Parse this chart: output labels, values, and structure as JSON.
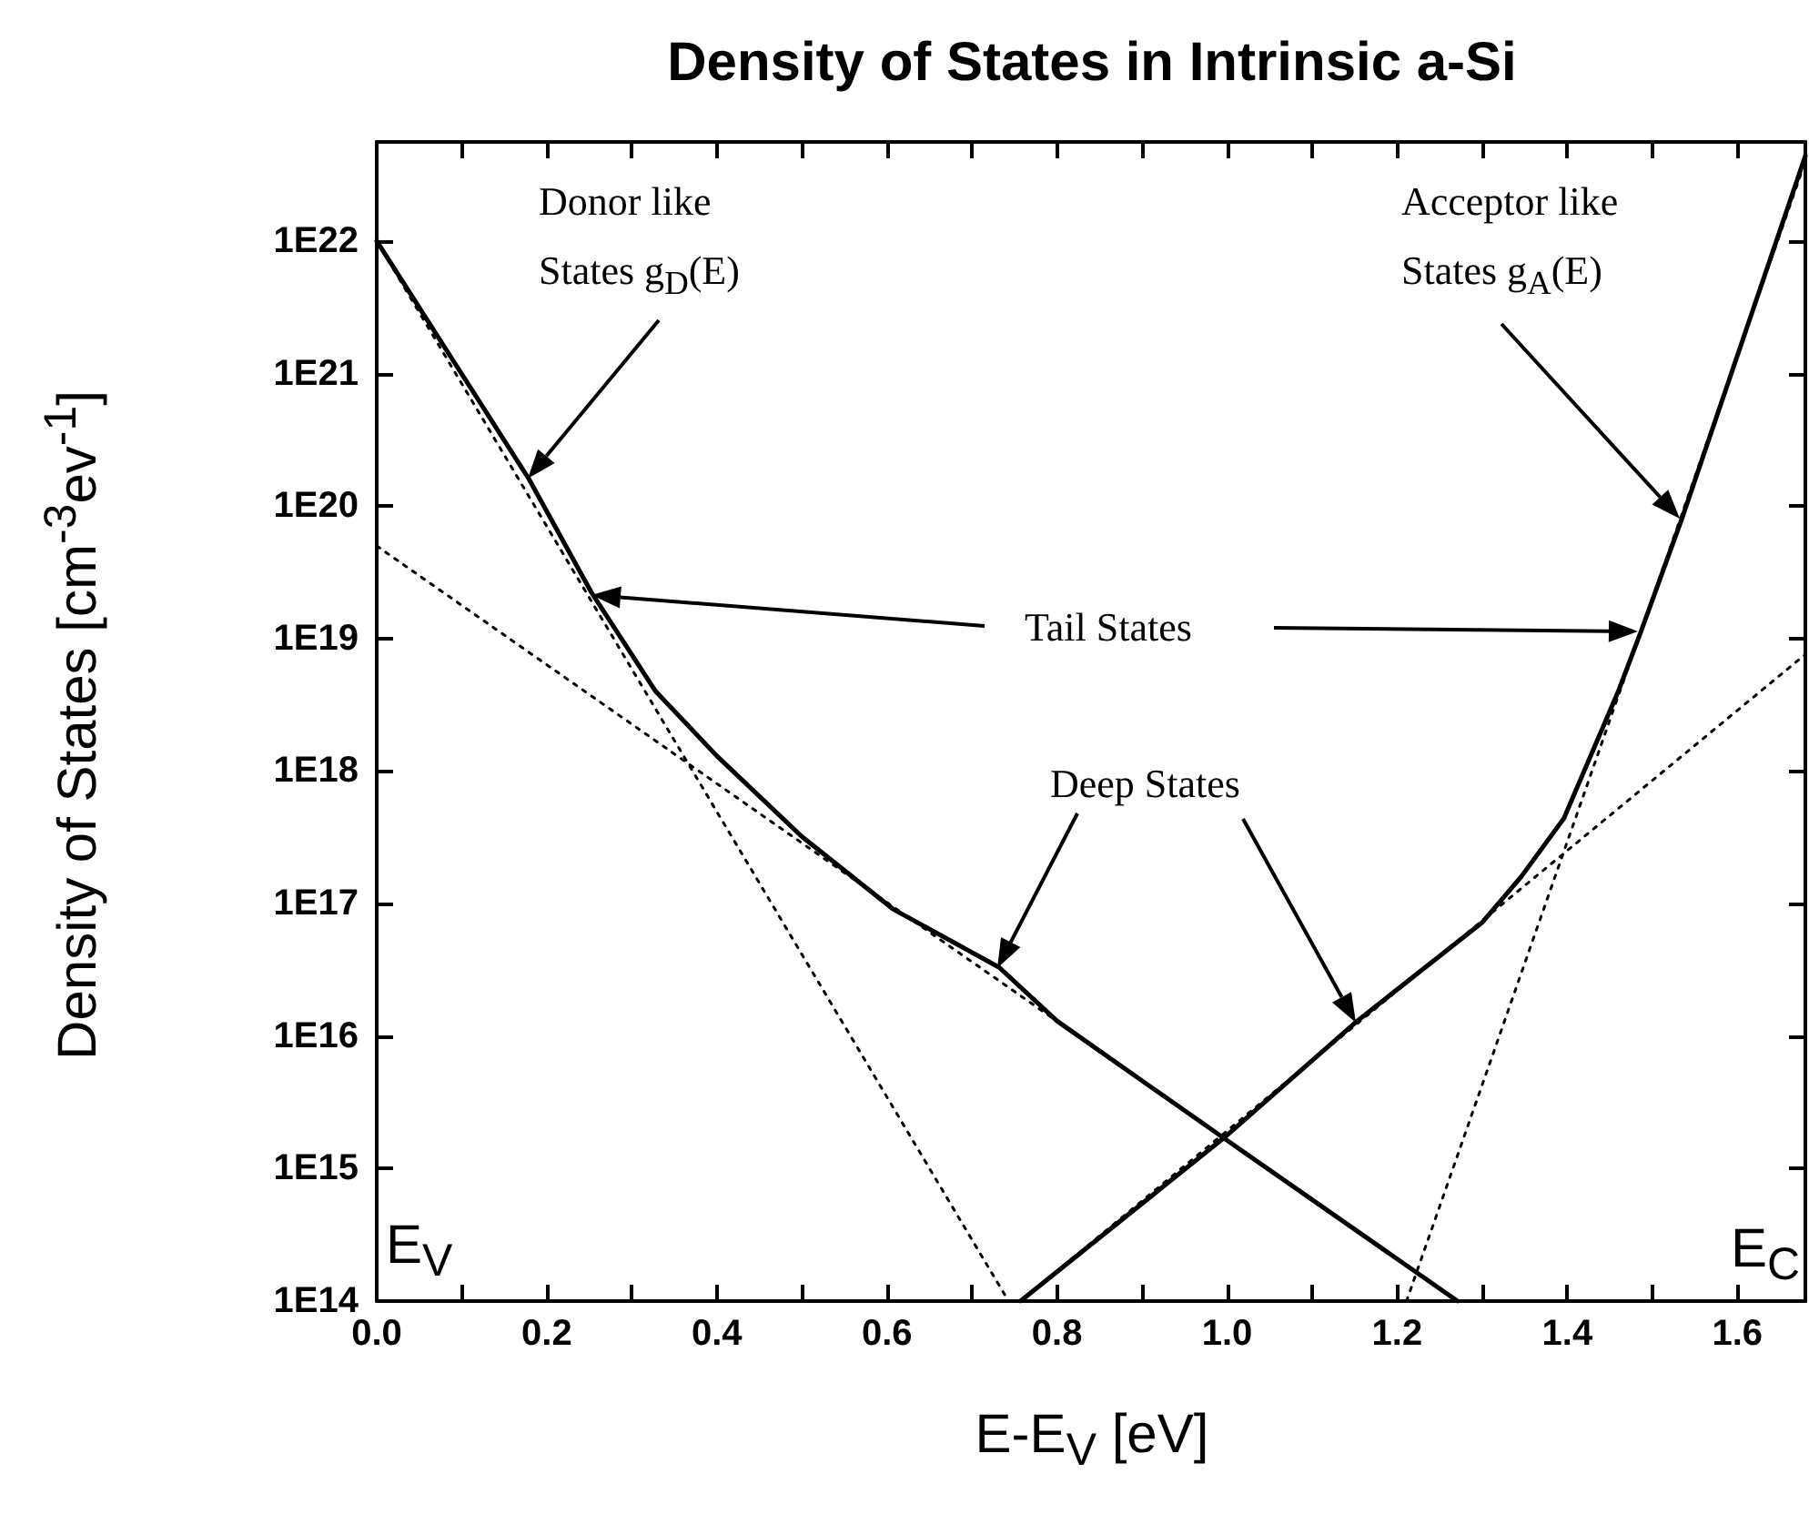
{
  "chart_data": {
    "type": "line",
    "title": "Density of States in Intrinsic a-Si",
    "xlabel": "E-E$_{V}$ [eV]",
    "ylabel": "Density of States [cm$^{-3}$ev$^{-1}$]",
    "log": "y",
    "marker": "none",
    "xlim": [
      0,
      1.68
    ],
    "ylim": [
      100000000000000.0,
      5.6e+22
    ],
    "xticks": [
      {
        "value": 0,
        "label": "0.0"
      },
      {
        "value": 0.1,
        "label": null
      },
      {
        "value": 0.2,
        "label": "0.2"
      },
      {
        "value": 0.3,
        "label": null
      },
      {
        "value": 0.4,
        "label": "0.4"
      },
      {
        "value": 0.5,
        "label": null
      },
      {
        "value": 0.6,
        "label": "0.6"
      },
      {
        "value": 0.7,
        "label": null
      },
      {
        "value": 0.8,
        "label": "0.8"
      },
      {
        "value": 0.9,
        "label": null
      },
      {
        "value": 1.0,
        "label": "1.0"
      },
      {
        "value": 1.1,
        "label": null
      },
      {
        "value": 1.2,
        "label": "1.2"
      },
      {
        "value": 1.3,
        "label": null
      },
      {
        "value": 1.4,
        "label": "1.4"
      },
      {
        "value": 1.5,
        "label": null
      },
      {
        "value": 1.6,
        "label": "1.6"
      }
    ],
    "yticks": [
      {
        "value": 100000000000000.0,
        "label": "1E14"
      },
      {
        "value": 1000000000000000.0,
        "label": "1E15"
      },
      {
        "value": 1e+16,
        "label": "1E16"
      },
      {
        "value": 1e+17,
        "label": "1E17"
      },
      {
        "value": 1e+18,
        "label": "1E18"
      },
      {
        "value": 1e+19,
        "label": "1E19"
      },
      {
        "value": 1e+20,
        "label": "1E20"
      },
      {
        "value": 1e+21,
        "label": "1E21"
      },
      {
        "value": 1e+22,
        "label": "1E22"
      }
    ],
    "series": [
      {
        "color": "#000000",
        "line_style": "solid",
        "x": [
          0,
          0.179,
          0.253,
          0.328,
          0.4,
          0.5,
          0.607,
          0.732,
          0.8,
          0.996,
          1.271
        ],
        "values": [
          1e+22,
          1.6e+20,
          2.2e+19,
          4e+18,
          1.3e+18,
          3.2e+17,
          9.1e+16,
          3.3e+16,
          1.3e+16,
          1700000000000000.0,
          100000000000000.0
        ]
      },
      {
        "color": "#000000",
        "line_style": "solid",
        "x": [
          0.757,
          0.996,
          1.153,
          1.3,
          1.346,
          1.396,
          1.46,
          1.486,
          1.535,
          1.68
        ],
        "values": [
          100000000000000.0,
          1700000000000000.0,
          1.3e+16,
          7.2e+16,
          1.6e+17,
          4.4e+17,
          4e+18,
          1.1e+19,
          8.1e+19,
          4.4e+22
        ]
      },
      {
        "color": "#000000",
        "line_style": "dotted",
        "x": [
          0,
          0.743
        ],
        "values": [
          1e+22,
          100000000000000.0
        ]
      },
      {
        "color": "#000000",
        "line_style": "dotted",
        "x": [
          0,
          1.271
        ],
        "values": [
          5e+19,
          100000000000000.0
        ]
      },
      {
        "color": "#000000",
        "line_style": "dotted",
        "x": [
          1.211,
          1.68
        ],
        "values": [
          100000000000000.0,
          4e+22
        ]
      },
      {
        "color": "#000000",
        "line_style": "dotted",
        "x": [
          0.757,
          1.68
        ],
        "values": [
          100000000000000.0,
          7.6e+18
        ]
      }
    ],
    "annotations": [
      "Donor like\nStates g$_{D}$(E)",
      "Acceptor like\nStates g$_{A}$(E)",
      "Tail States",
      "Deep States",
      "E$_{V}$",
      "E$_{C}$"
    ]
  }
}
